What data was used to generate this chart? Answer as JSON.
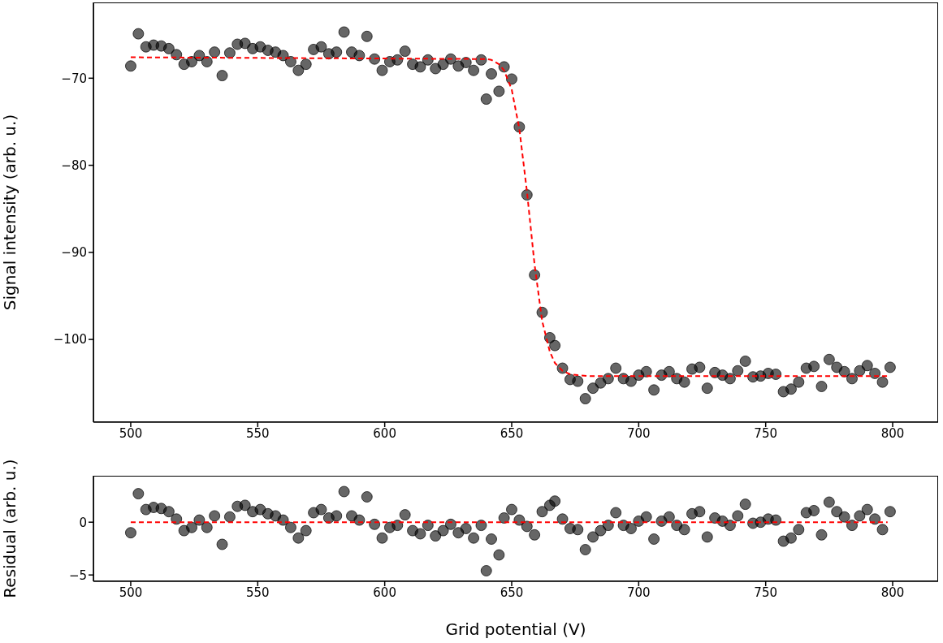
{
  "chart_data": [
    {
      "type": "scatter",
      "ylabel": "Signal intensity (arb. u.)",
      "xlim": [
        485.3,
        817.9
      ],
      "xticks": [
        500,
        550,
        600,
        650,
        700,
        750,
        800
      ],
      "ylim": [
        -109.5,
        -61.3
      ],
      "yticks": [
        {
          "value": -100,
          "label": "−100"
        },
        {
          "value": -90,
          "label": "−90"
        },
        {
          "value": -80,
          "label": "−80"
        },
        {
          "value": -70,
          "label": "−70"
        }
      ],
      "series": [
        {
          "type": "scatter",
          "color": "#000000",
          "marker": "circle",
          "x": [
            500,
            503,
            506,
            509,
            512,
            515,
            518,
            521,
            524,
            527,
            530,
            533,
            536,
            539,
            542,
            545,
            548,
            551,
            554,
            557,
            560,
            563,
            566,
            569,
            572,
            575,
            578,
            581,
            584,
            587,
            590,
            593,
            596,
            599,
            602,
            605,
            608,
            611,
            614,
            617,
            620,
            623,
            626,
            629,
            632,
            635,
            638,
            640,
            642,
            645,
            647,
            650,
            653,
            656,
            659,
            662,
            665,
            667,
            670,
            673,
            676,
            679,
            682,
            685,
            688,
            691,
            694,
            697,
            700,
            703,
            706,
            709,
            712,
            715,
            718,
            721,
            724,
            727,
            730,
            733,
            736,
            739,
            742,
            745,
            748,
            751,
            754,
            757,
            760,
            763,
            766,
            769,
            772,
            775,
            778,
            781,
            784,
            787,
            790,
            793,
            796,
            799
          ],
          "values": [
            -68.6,
            -64.9,
            -66.4,
            -66.2,
            -66.3,
            -66.6,
            -67.3,
            -68.4,
            -68.1,
            -67.4,
            -68.1,
            -67.0,
            -69.7,
            -67.1,
            -66.1,
            -66.0,
            -66.6,
            -66.4,
            -66.8,
            -67.0,
            -67.4,
            -68.1,
            -69.1,
            -68.4,
            -66.7,
            -66.4,
            -67.2,
            -67.0,
            -64.7,
            -67.0,
            -67.4,
            -65.2,
            -67.8,
            -69.1,
            -68.1,
            -67.9,
            -66.9,
            -68.4,
            -68.7,
            -67.9,
            -68.9,
            -68.4,
            -67.8,
            -68.6,
            -68.2,
            -69.1,
            -67.9,
            -72.4,
            -69.5,
            -71.5,
            -68.7,
            -70.1,
            -75.6,
            -83.4,
            -92.6,
            -96.9,
            -99.8,
            -100.7,
            -103.3,
            -104.6,
            -104.8,
            -106.8,
            -105.6,
            -105.0,
            -104.5,
            -103.3,
            -104.5,
            -104.8,
            -104.1,
            -103.7,
            -105.8,
            -104.1,
            -103.7,
            -104.5,
            -104.9,
            -103.4,
            -103.2,
            -105.6,
            -103.8,
            -104.1,
            -104.5,
            -103.6,
            -102.5,
            -104.3,
            -104.2,
            -103.9,
            -104.0,
            -106.0,
            -105.7,
            -104.9,
            -103.3,
            -103.1,
            -105.4,
            -102.3,
            -103.2,
            -103.7,
            -104.5,
            -103.6,
            -103.0,
            -103.9,
            -104.9,
            -103.2
          ]
        },
        {
          "type": "line",
          "color": "#ff0000",
          "line_style": "dashed",
          "marker": "none",
          "x": [
            500,
            640,
            642,
            645,
            647,
            650,
            653,
            656,
            659,
            662,
            665,
            667,
            670,
            673,
            676,
            680,
            798
          ],
          "values": [
            -67.6,
            -67.8,
            -67.9,
            -68.4,
            -69.1,
            -71.3,
            -75.8,
            -83.0,
            -91.4,
            -97.9,
            -101.4,
            -102.7,
            -103.6,
            -104.0,
            -104.1,
            -104.2,
            -104.2
          ]
        }
      ]
    },
    {
      "type": "scatter",
      "xlabel": "Grid potential (V)",
      "ylabel": "Residual (arb. u.)",
      "xlim": [
        485.3,
        817.9
      ],
      "xticks": [
        500,
        550,
        600,
        650,
        700,
        750,
        800
      ],
      "ylim": [
        -5.6,
        4.4
      ],
      "yticks": [
        {
          "value": -5,
          "label": "−5"
        },
        0
      ],
      "series": [
        {
          "type": "scatter",
          "color": "#000000",
          "marker": "circle",
          "x": [
            500,
            503,
            506,
            509,
            512,
            515,
            518,
            521,
            524,
            527,
            530,
            533,
            536,
            539,
            542,
            545,
            548,
            551,
            554,
            557,
            560,
            563,
            566,
            569,
            572,
            575,
            578,
            581,
            584,
            587,
            590,
            593,
            596,
            599,
            602,
            605,
            608,
            611,
            614,
            617,
            620,
            623,
            626,
            629,
            632,
            635,
            638,
            640,
            642,
            645,
            647,
            650,
            653,
            656,
            659,
            662,
            665,
            667,
            670,
            673,
            676,
            679,
            682,
            685,
            688,
            691,
            694,
            697,
            700,
            703,
            706,
            709,
            712,
            715,
            718,
            721,
            724,
            727,
            730,
            733,
            736,
            739,
            742,
            745,
            748,
            751,
            754,
            757,
            760,
            763,
            766,
            769,
            772,
            775,
            778,
            781,
            784,
            787,
            790,
            793,
            796,
            799
          ],
          "values": [
            -1.0,
            2.7,
            1.2,
            1.4,
            1.3,
            1.0,
            0.3,
            -0.8,
            -0.5,
            0.2,
            -0.5,
            0.6,
            -2.1,
            0.5,
            1.5,
            1.6,
            1.0,
            1.2,
            0.8,
            0.6,
            0.2,
            -0.5,
            -1.5,
            -0.8,
            0.9,
            1.2,
            0.4,
            0.6,
            2.9,
            0.6,
            0.2,
            2.4,
            -0.2,
            -1.5,
            -0.5,
            -0.3,
            0.7,
            -0.8,
            -1.1,
            -0.3,
            -1.3,
            -0.8,
            -0.2,
            -1.0,
            -0.6,
            -1.5,
            -0.3,
            -4.6,
            -1.6,
            -3.1,
            0.4,
            1.2,
            0.2,
            -0.4,
            -1.2,
            1.0,
            1.6,
            2.0,
            0.3,
            -0.6,
            -0.7,
            -2.6,
            -1.4,
            -0.8,
            -0.3,
            0.9,
            -0.3,
            -0.6,
            0.1,
            0.5,
            -1.6,
            0.1,
            0.5,
            -0.3,
            -0.7,
            0.8,
            1.0,
            -1.4,
            0.4,
            0.1,
            -0.3,
            0.6,
            1.7,
            -0.1,
            0.0,
            0.3,
            0.2,
            -1.8,
            -1.5,
            -0.7,
            0.9,
            1.1,
            -1.2,
            1.9,
            1.0,
            0.5,
            -0.3,
            0.6,
            1.2,
            0.3,
            -0.7,
            1.0
          ]
        },
        {
          "type": "line",
          "color": "#ff0000",
          "line_style": "dashed",
          "marker": "none",
          "x": [
            500,
            798
          ],
          "values": [
            0,
            0
          ]
        }
      ]
    }
  ]
}
